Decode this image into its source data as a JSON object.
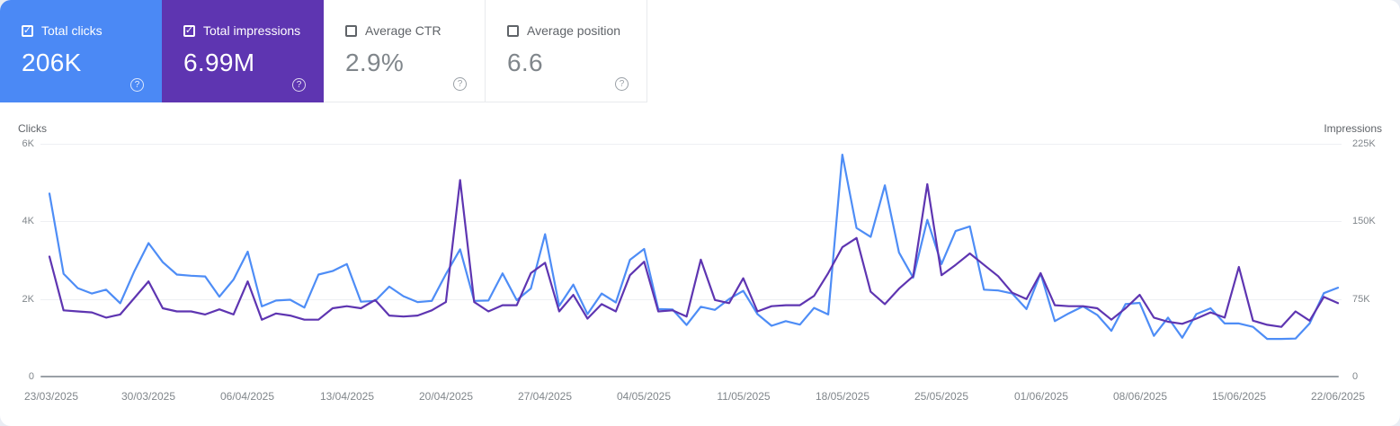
{
  "colors": {
    "clicks": "#4b89f5",
    "impressions": "#5e35b1",
    "clicks_line": "#4e8df6",
    "impressions_line": "#5e35b1"
  },
  "cards": [
    {
      "label": "Total clicks",
      "value": "206K",
      "selected": true
    },
    {
      "label": "Total impressions",
      "value": "6.99M",
      "selected": true
    },
    {
      "label": "Average CTR",
      "value": "2.9%",
      "selected": false
    },
    {
      "label": "Average position",
      "value": "6.6",
      "selected": false
    }
  ],
  "checkbox_glyph": "✓",
  "help_glyph": "?",
  "chart": {
    "left_axis_title": "Clicks",
    "right_axis_title": "Impressions",
    "left_ticks": [
      "6K",
      "4K",
      "2K",
      "0"
    ],
    "right_ticks": [
      "225K",
      "150K",
      "75K",
      "0"
    ],
    "x_ticks": [
      "23/03/2025",
      "30/03/2025",
      "06/04/2025",
      "13/04/2025",
      "20/04/2025",
      "27/04/2025",
      "04/05/2025",
      "11/05/2025",
      "18/05/2025",
      "25/05/2025",
      "01/06/2025",
      "08/06/2025",
      "15/06/2025",
      "22/06/2025"
    ]
  },
  "chart_data": {
    "type": "line",
    "x_start_date": "23/03/2025",
    "x_end_date": "22/06/2025",
    "x_interval": "daily",
    "x_tick_labels": [
      "23/03/2025",
      "30/03/2025",
      "06/04/2025",
      "13/04/2025",
      "20/04/2025",
      "27/04/2025",
      "04/05/2025",
      "11/05/2025",
      "18/05/2025",
      "25/05/2025",
      "01/06/2025",
      "08/06/2025",
      "15/06/2025",
      "22/06/2025"
    ],
    "grid": true,
    "legend_position": "none",
    "series": [
      {
        "name": "Clicks",
        "axis": "left",
        "ylim": [
          0,
          6000
        ],
        "yticks": [
          0,
          2000,
          4000,
          6000
        ],
        "values": [
          4720,
          2650,
          2280,
          2140,
          2240,
          1890,
          2720,
          3440,
          2950,
          2630,
          2600,
          2580,
          2060,
          2500,
          3220,
          1810,
          1960,
          1980,
          1780,
          2630,
          2720,
          2900,
          1930,
          1950,
          2320,
          2070,
          1920,
          1950,
          2640,
          3280,
          1950,
          1960,
          2660,
          1970,
          2270,
          3670,
          1820,
          2370,
          1610,
          2140,
          1910,
          3010,
          3290,
          1740,
          1730,
          1330,
          1800,
          1720,
          2000,
          2210,
          1610,
          1310,
          1430,
          1340,
          1770,
          1600,
          5720,
          3830,
          3600,
          4930,
          3200,
          2550,
          4040,
          2900,
          3750,
          3870,
          2240,
          2220,
          2140,
          1740,
          2660,
          1430,
          1630,
          1810,
          1590,
          1180,
          1870,
          1900,
          1050,
          1520,
          1000,
          1610,
          1760,
          1370,
          1370,
          1280,
          970,
          970,
          980,
          1370,
          2150,
          2290
        ]
      },
      {
        "name": "Impressions",
        "axis": "right",
        "ylim": [
          0,
          225000
        ],
        "yticks": [
          0,
          75000,
          150000,
          225000
        ],
        "values": [
          116000,
          64000,
          63000,
          62000,
          57000,
          60000,
          76000,
          92000,
          66000,
          63000,
          63000,
          60000,
          65000,
          60000,
          92000,
          55000,
          61000,
          59000,
          55000,
          55000,
          66000,
          68000,
          66000,
          74000,
          59000,
          58000,
          59000,
          64000,
          72000,
          190000,
          72000,
          63000,
          69000,
          69000,
          100000,
          110000,
          63000,
          79000,
          56000,
          70000,
          63000,
          98000,
          111000,
          63000,
          64000,
          58000,
          113000,
          74000,
          71000,
          95000,
          63000,
          68000,
          69000,
          69000,
          78000,
          100000,
          125000,
          134000,
          82000,
          70000,
          85000,
          97000,
          186000,
          98000,
          108000,
          119000,
          108000,
          97000,
          81000,
          75000,
          100000,
          69000,
          68000,
          68000,
          66000,
          55000,
          66000,
          79000,
          57000,
          53000,
          51000,
          56000,
          62000,
          57000,
          106000,
          54000,
          50000,
          48000,
          63000,
          54000,
          77000,
          71000
        ]
      }
    ]
  }
}
